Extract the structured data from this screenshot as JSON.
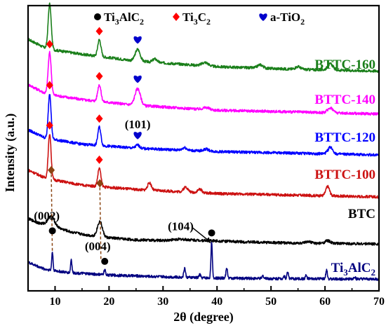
{
  "chart_data": {
    "type": "line",
    "title": "",
    "xlabel": "2θ (degree)",
    "ylabel": "Intensity (a.u.)",
    "xlim": [
      5,
      70
    ],
    "x_ticks": [
      10,
      20,
      30,
      40,
      50,
      60,
      70
    ],
    "y_ticks_shown": false,
    "grid": false,
    "legend": {
      "placement": "top",
      "entries": [
        {
          "marker": "circle",
          "color": "#000000",
          "label": "Ti3AlC2",
          "label_main": "Ti",
          "label_sub1": "3",
          "label_mid": "AlC",
          "label_sub2": "2"
        },
        {
          "marker": "diamond",
          "color": "#ff0000",
          "label": "Ti3C2",
          "label_main": "Ti",
          "label_sub1": "3",
          "label_mid": "C",
          "label_sub2": "2"
        },
        {
          "marker": "heart",
          "color": "#0000cc",
          "label": "a-TiO2",
          "label_main": "a-TiO",
          "label_sub1": "2",
          "label_mid": "",
          "label_sub2": ""
        }
      ]
    },
    "series": [
      {
        "name": "BTTC-160",
        "color": "#1a7f1a",
        "offset": 6.0,
        "baseline": [
          [
            5,
            1.2
          ],
          [
            8,
            0.95
          ],
          [
            9,
            0.9
          ],
          [
            15,
            0.75
          ],
          [
            25,
            0.55
          ],
          [
            40,
            0.38
          ],
          [
            55,
            0.3
          ],
          [
            70,
            0.25
          ]
        ],
        "peaks": [
          [
            9.0,
            1.35,
            0.28
          ],
          [
            18.2,
            0.5,
            0.3
          ],
          [
            25.3,
            0.35,
            0.45
          ],
          [
            28.5,
            0.1,
            0.4
          ],
          [
            37.8,
            0.1,
            0.6
          ],
          [
            48.0,
            0.1,
            0.5
          ],
          [
            55.0,
            0.08,
            0.5
          ],
          [
            61.0,
            0.18,
            0.5
          ]
        ]
      },
      {
        "name": "BTTC-140",
        "color": "#ff00ff",
        "offset": 4.75,
        "baseline": [
          [
            5,
            1.1
          ],
          [
            8,
            0.85
          ],
          [
            9,
            0.8
          ],
          [
            15,
            0.65
          ],
          [
            25,
            0.48
          ],
          [
            40,
            0.33
          ],
          [
            55,
            0.28
          ],
          [
            70,
            0.22
          ]
        ],
        "peaks": [
          [
            9.0,
            1.25,
            0.28
          ],
          [
            18.2,
            0.5,
            0.3
          ],
          [
            25.3,
            0.5,
            0.5
          ],
          [
            38.0,
            0.06,
            0.6
          ],
          [
            61.0,
            0.15,
            0.5
          ]
        ]
      },
      {
        "name": "BTTC-120",
        "color": "#0000ff",
        "offset": 3.55,
        "baseline": [
          [
            5,
            0.95
          ],
          [
            8,
            0.72
          ],
          [
            9,
            0.68
          ],
          [
            15,
            0.52
          ],
          [
            25,
            0.4
          ],
          [
            40,
            0.3
          ],
          [
            55,
            0.25
          ],
          [
            70,
            0.2
          ]
        ],
        "peaks": [
          [
            9.0,
            1.35,
            0.26
          ],
          [
            18.2,
            0.55,
            0.28
          ],
          [
            25.3,
            0.1,
            0.35
          ],
          [
            34.0,
            0.08,
            0.4
          ],
          [
            38.0,
            0.06,
            0.5
          ],
          [
            61.0,
            0.2,
            0.45
          ]
        ]
      },
      {
        "name": "BTTC-100",
        "color": "#cc1111",
        "offset": 2.3,
        "baseline": [
          [
            5,
            1.0
          ],
          [
            8,
            0.78
          ],
          [
            9,
            0.73
          ],
          [
            15,
            0.55
          ],
          [
            25,
            0.42
          ],
          [
            40,
            0.3
          ],
          [
            55,
            0.25
          ],
          [
            70,
            0.2
          ]
        ],
        "peaks": [
          [
            9.0,
            1.35,
            0.26
          ],
          [
            18.2,
            0.55,
            0.28
          ],
          [
            27.5,
            0.22,
            0.35
          ],
          [
            34.2,
            0.15,
            0.4
          ],
          [
            36.8,
            0.1,
            0.4
          ],
          [
            60.5,
            0.28,
            0.35
          ]
        ]
      },
      {
        "name": "BTC",
        "color": "#000000",
        "offset": 1.0,
        "baseline": [
          [
            5,
            0.85
          ],
          [
            7,
            0.72
          ],
          [
            9,
            0.66
          ],
          [
            13,
            0.45
          ],
          [
            16,
            0.36
          ],
          [
            20,
            0.28
          ],
          [
            25,
            0.22
          ],
          [
            30,
            0.2
          ],
          [
            33,
            0.24
          ],
          [
            36,
            0.21
          ],
          [
            45,
            0.16
          ],
          [
            55,
            0.12
          ],
          [
            70,
            0.1
          ]
        ],
        "peaks": [
          [
            9.3,
            0.28,
            0.6
          ],
          [
            18.3,
            0.45,
            0.45
          ],
          [
            57.0,
            0.04,
            0.6
          ],
          [
            60.5,
            0.08,
            0.5
          ]
        ]
      },
      {
        "name": "Ti3AlC2",
        "color": "#000080",
        "offset": 0.0,
        "label_main": "Ti",
        "label_sub1": "3",
        "label_mid": "AlC",
        "label_sub2": "2",
        "baseline": [
          [
            5,
            0.55
          ],
          [
            8,
            0.35
          ],
          [
            12,
            0.25
          ],
          [
            20,
            0.17
          ],
          [
            30,
            0.12
          ],
          [
            40,
            0.08
          ],
          [
            55,
            0.06
          ],
          [
            70,
            0.05
          ]
        ],
        "peaks": [
          [
            9.5,
            0.55,
            0.12
          ],
          [
            13.0,
            0.4,
            0.12
          ],
          [
            19.2,
            0.15,
            0.15
          ],
          [
            34.0,
            0.28,
            0.15
          ],
          [
            36.8,
            0.1,
            0.15
          ],
          [
            39.0,
            1.05,
            0.13
          ],
          [
            41.8,
            0.3,
            0.15
          ],
          [
            48.5,
            0.08,
            0.15
          ],
          [
            52.4,
            0.08,
            0.15
          ],
          [
            53.1,
            0.2,
            0.15
          ],
          [
            56.5,
            0.1,
            0.15
          ],
          [
            60.3,
            0.25,
            0.15
          ],
          [
            65.5,
            0.07,
            0.15
          ]
        ]
      }
    ],
    "annotations": [
      {
        "text": "(002)",
        "x": 9.5
      },
      {
        "text": "(004)",
        "x": 19.2
      },
      {
        "text": "(104)",
        "x": 39.0
      },
      {
        "text": "(101)",
        "x": 25.3
      }
    ],
    "markers": [
      {
        "series": "BTTC-160",
        "type": "diamond",
        "x": 9.0
      },
      {
        "series": "BTTC-160",
        "type": "diamond",
        "x": 18.2
      },
      {
        "series": "BTTC-160",
        "type": "heart",
        "x": 25.3
      },
      {
        "series": "BTTC-140",
        "type": "diamond",
        "x": 9.0
      },
      {
        "series": "BTTC-140",
        "type": "diamond",
        "x": 18.2
      },
      {
        "series": "BTTC-140",
        "type": "heart",
        "x": 25.3
      },
      {
        "series": "BTTC-120",
        "type": "diamond",
        "x": 9.0
      },
      {
        "series": "BTTC-120",
        "type": "diamond",
        "x": 18.2
      },
      {
        "series": "BTTC-120",
        "type": "heart",
        "x": 25.3
      },
      {
        "series": "BTTC-100",
        "type": "diamond",
        "x": 9.0
      },
      {
        "series": "BTTC-100",
        "type": "diamond",
        "x": 18.2
      },
      {
        "series": "BTC",
        "type": "diamond-brown",
        "x": 9.3
      },
      {
        "series": "BTC",
        "type": "diamond-brown",
        "x": 18.3
      },
      {
        "series": "Ti3AlC2",
        "type": "circle",
        "x": 9.5
      },
      {
        "series": "Ti3AlC2",
        "type": "circle",
        "x": 19.2
      },
      {
        "series": "Ti3AlC2",
        "type": "circle",
        "x": 39.0
      }
    ]
  }
}
